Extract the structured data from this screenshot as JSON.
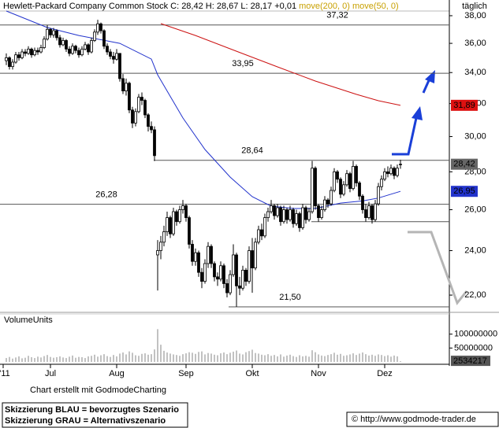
{
  "chart_data": {
    "type": "candlestick",
    "title": "Hewlett-Packard Company Common Stock C: 28,42 H: 28,67 L: 28,17 +0,01",
    "period": "täglich",
    "legend_color": "#c8a000",
    "log_scale": true,
    "xlim": [
      -2,
      140.5
    ],
    "xticks": [
      {
        "value": -1,
        "label": "'11"
      },
      {
        "value": 14,
        "label": "Jul"
      },
      {
        "value": 35,
        "label": "Aug"
      },
      {
        "value": 57,
        "label": "Sep"
      },
      {
        "value": 78,
        "label": "Okt"
      },
      {
        "value": 99,
        "label": "Nov"
      },
      {
        "value": 120,
        "label": "Dez"
      }
    ],
    "ylim": [
      21.27,
      38.35
    ],
    "yticks": [
      {
        "value": 38,
        "label": "38,00"
      },
      {
        "value": 36,
        "label": "36,00"
      },
      {
        "value": 34,
        "label": "34,00"
      },
      {
        "value": 32,
        "label": "32,00"
      },
      {
        "value": 30,
        "label": "30,00"
      },
      {
        "value": 28,
        "label": "28,00"
      },
      {
        "value": 26,
        "label": "26,00"
      },
      {
        "value": 24,
        "label": "24,00"
      },
      {
        "value": 22,
        "label": "22,00"
      }
    ],
    "candles": [
      [
        34.8,
        35.3,
        34.5,
        35.0
      ],
      [
        35.0,
        35.1,
        34.2,
        34.4
      ],
      [
        34.4,
        34.9,
        34.2,
        34.7
      ],
      [
        34.7,
        35.4,
        34.6,
        35.2
      ],
      [
        35.2,
        35.4,
        34.8,
        35.0
      ],
      [
        35.0,
        35.6,
        34.9,
        35.4
      ],
      [
        35.4,
        35.6,
        35.1,
        35.3
      ],
      [
        35.3,
        35.8,
        35.2,
        35.6
      ],
      [
        35.6,
        35.7,
        35.0,
        35.2
      ],
      [
        35.2,
        35.7,
        35.1,
        35.5
      ],
      [
        35.5,
        35.7,
        35.2,
        35.4
      ],
      [
        35.4,
        35.9,
        35.3,
        35.7
      ],
      [
        35.7,
        36.5,
        35.6,
        36.3
      ],
      [
        36.3,
        37.3,
        36.2,
        37.0
      ],
      [
        37.0,
        37.1,
        36.4,
        36.6
      ],
      [
        36.6,
        37.1,
        36.4,
        36.9
      ],
      [
        36.9,
        37.0,
        36.2,
        36.4
      ],
      [
        36.4,
        36.6,
        35.7,
        35.9
      ],
      [
        35.9,
        36.4,
        35.8,
        36.2
      ],
      [
        36.2,
        36.3,
        35.4,
        35.6
      ],
      [
        35.6,
        35.8,
        35.1,
        35.3
      ],
      [
        35.3,
        36.0,
        35.2,
        35.8
      ],
      [
        35.8,
        35.9,
        35.3,
        35.5
      ],
      [
        35.5,
        35.7,
        35.0,
        35.2
      ],
      [
        35.2,
        35.8,
        35.1,
        35.6
      ],
      [
        35.6,
        36.1,
        35.5,
        35.9
      ],
      [
        35.9,
        36.0,
        35.2,
        35.4
      ],
      [
        35.4,
        36.4,
        35.3,
        36.2
      ],
      [
        36.2,
        37.0,
        36.1,
        36.8
      ],
      [
        36.8,
        37.7,
        36.6,
        37.4
      ],
      [
        37.4,
        37.5,
        36.7,
        36.9
      ],
      [
        36.9,
        37.0,
        35.6,
        35.8
      ],
      [
        35.8,
        36.0,
        35.2,
        35.4
      ],
      [
        35.4,
        35.6,
        34.9,
        35.1
      ],
      [
        35.1,
        35.4,
        34.6,
        34.9
      ],
      [
        34.9,
        35.6,
        34.8,
        35.3
      ],
      [
        35.3,
        35.3,
        33.4,
        33.6
      ],
      [
        33.6,
        33.9,
        32.6,
        32.8
      ],
      [
        32.8,
        33.6,
        32.5,
        33.3
      ],
      [
        33.3,
        33.4,
        31.4,
        31.6
      ],
      [
        31.6,
        31.8,
        30.5,
        30.8
      ],
      [
        30.8,
        31.7,
        30.6,
        31.5
      ],
      [
        31.5,
        32.6,
        31.4,
        32.4
      ],
      [
        32.4,
        32.7,
        31.9,
        32.2
      ],
      [
        32.2,
        32.3,
        31.1,
        31.3
      ],
      [
        31.3,
        31.4,
        30.3,
        30.6
      ],
      [
        30.6,
        30.9,
        30.2,
        30.4
      ],
      [
        30.4,
        30.6,
        28.6,
        28.9
      ],
      [
        23.8,
        24.5,
        22.2,
        24.0
      ],
      [
        24.0,
        24.7,
        23.6,
        24.4
      ],
      [
        24.4,
        25.2,
        24.2,
        24.9
      ],
      [
        24.9,
        25.9,
        24.7,
        25.6
      ],
      [
        25.6,
        25.7,
        24.6,
        24.8
      ],
      [
        24.8,
        26.1,
        24.7,
        25.9
      ],
      [
        25.9,
        26.0,
        25.2,
        25.4
      ],
      [
        25.4,
        26.2,
        25.3,
        26.0
      ],
      [
        26.0,
        26.5,
        25.8,
        26.2
      ],
      [
        26.2,
        26.3,
        25.4,
        25.6
      ],
      [
        25.6,
        25.7,
        24.1,
        24.3
      ],
      [
        24.3,
        24.5,
        23.3,
        23.5
      ],
      [
        23.5,
        24.1,
        23.3,
        23.9
      ],
      [
        23.9,
        24.0,
        22.8,
        23.0
      ],
      [
        23.0,
        23.2,
        22.3,
        22.6
      ],
      [
        22.6,
        23.6,
        22.5,
        23.4
      ],
      [
        23.4,
        24.4,
        23.2,
        24.2
      ],
      [
        24.2,
        24.3,
        23.2,
        23.4
      ],
      [
        23.4,
        23.5,
        22.6,
        22.8
      ],
      [
        22.8,
        23.0,
        22.4,
        22.7
      ],
      [
        22.7,
        23.5,
        22.6,
        23.3
      ],
      [
        23.3,
        23.4,
        22.3,
        22.5
      ],
      [
        22.5,
        22.7,
        21.9,
        22.1
      ],
      [
        22.1,
        23.1,
        22.0,
        22.9
      ],
      [
        22.9,
        24.3,
        22.8,
        23.8
      ],
      [
        23.8,
        23.9,
        21.5,
        22.4
      ],
      [
        22.4,
        22.8,
        22.0,
        22.3
      ],
      [
        22.3,
        23.3,
        22.2,
        23.1
      ],
      [
        23.1,
        23.2,
        22.4,
        22.6
      ],
      [
        22.6,
        24.2,
        22.5,
        24.0
      ],
      [
        24.0,
        24.6,
        22.1,
        23.2
      ],
      [
        23.2,
        24.6,
        23.1,
        24.4
      ],
      [
        24.4,
        25.2,
        24.3,
        25.0
      ],
      [
        25.0,
        25.3,
        24.5,
        24.7
      ],
      [
        24.7,
        25.8,
        24.6,
        25.6
      ],
      [
        25.6,
        26.1,
        25.4,
        25.9
      ],
      [
        25.9,
        26.5,
        25.8,
        26.2
      ],
      [
        26.2,
        26.3,
        25.5,
        25.7
      ],
      [
        25.7,
        26.3,
        25.6,
        26.1
      ],
      [
        26.1,
        26.2,
        25.2,
        25.4
      ],
      [
        25.4,
        26.2,
        25.3,
        26.0
      ],
      [
        26.0,
        26.1,
        25.3,
        25.5
      ],
      [
        25.5,
        26.2,
        25.4,
        26.0
      ],
      [
        26.0,
        26.1,
        25.1,
        25.3
      ],
      [
        25.3,
        26.0,
        25.2,
        25.8
      ],
      [
        25.8,
        25.9,
        24.9,
        25.1
      ],
      [
        25.1,
        26.3,
        25.0,
        26.1
      ],
      [
        26.1,
        26.2,
        25.3,
        25.5
      ],
      [
        25.5,
        26.1,
        25.4,
        25.9
      ],
      [
        25.9,
        28.6,
        25.8,
        28.2
      ],
      [
        28.2,
        28.3,
        26.0,
        26.2
      ],
      [
        26.2,
        26.3,
        25.4,
        25.6
      ],
      [
        25.6,
        26.2,
        25.5,
        26.0
      ],
      [
        26.0,
        26.7,
        25.9,
        26.5
      ],
      [
        26.5,
        26.6,
        26.1,
        26.3
      ],
      [
        26.3,
        27.2,
        26.2,
        27.0
      ],
      [
        27.0,
        28.2,
        26.9,
        28.0
      ],
      [
        28.0,
        28.1,
        27.4,
        27.6
      ],
      [
        27.6,
        27.7,
        26.6,
        26.8
      ],
      [
        26.8,
        27.5,
        26.7,
        27.3
      ],
      [
        27.3,
        28.1,
        27.2,
        27.9
      ],
      [
        27.9,
        28.0,
        26.9,
        27.1
      ],
      [
        27.1,
        28.6,
        27.0,
        28.3
      ],
      [
        28.3,
        28.4,
        27.2,
        27.4
      ],
      [
        27.4,
        27.5,
        26.5,
        26.7
      ],
      [
        26.7,
        26.8,
        25.8,
        26.0
      ],
      [
        26.0,
        26.3,
        25.4,
        25.6
      ],
      [
        25.6,
        26.4,
        25.5,
        26.2
      ],
      [
        26.2,
        26.3,
        25.3,
        25.5
      ],
      [
        25.5,
        26.5,
        25.4,
        26.3
      ],
      [
        26.3,
        27.4,
        26.2,
        27.2
      ],
      [
        27.2,
        27.8,
        27.0,
        27.6
      ],
      [
        27.6,
        28.2,
        27.5,
        28.0
      ],
      [
        28.0,
        28.3,
        27.7,
        27.9
      ],
      [
        27.9,
        28.4,
        27.8,
        28.2
      ],
      [
        28.2,
        28.3,
        27.6,
        27.8
      ],
      [
        27.8,
        28.4,
        27.7,
        28.2
      ],
      [
        28.41,
        28.67,
        28.17,
        28.42
      ]
    ],
    "series": [
      {
        "name": "move(200, 0)",
        "color": "#cc1111",
        "x": [
          49,
          60,
          73,
          86,
          98,
          111,
          118,
          125
        ],
        "values": [
          37.42,
          36.56,
          35.45,
          34.38,
          33.44,
          32.58,
          32.18,
          31.89
        ]
      },
      {
        "name": "move(50, 0)",
        "color": "#2233cc",
        "x": [
          0,
          13,
          23,
          36,
          46,
          48,
          56,
          63,
          71,
          78,
          84,
          91,
          98,
          106,
          113,
          118,
          125
        ],
        "values": [
          38.35,
          37.13,
          36.56,
          36.0,
          34.91,
          33.85,
          31.11,
          29.25,
          27.71,
          26.67,
          26.18,
          26.06,
          26.06,
          26.34,
          26.45,
          26.6,
          26.95
        ]
      }
    ],
    "levels": [
      {
        "value": 37.32,
        "label": "37,32"
      },
      {
        "value": 33.95,
        "label": "33,95"
      },
      {
        "value": 28.64,
        "label": "28,64"
      },
      {
        "value": 26.28,
        "label": "26,28"
      },
      {
        "value": 25.4
      },
      {
        "value": 21.5,
        "label": "21,50"
      }
    ],
    "price_labels": [
      {
        "value": 31.89,
        "label": "31,89",
        "color": "#dd1111"
      },
      {
        "value": 28.42,
        "label": "28,42",
        "color": "#666666"
      },
      {
        "value": 26.95,
        "label": "26,95",
        "color": "#2233cc"
      }
    ],
    "volume": {
      "label": "VolumeUnits",
      "color": "#9a9a9a",
      "ylim": [
        0,
        170000000
      ],
      "yticks": [
        100000000,
        50000000
      ],
      "values": [
        14000000,
        18000000,
        12000000,
        16000000,
        20000000,
        13000000,
        15000000,
        22000000,
        17000000,
        14000000,
        19000000,
        16000000,
        21000000,
        25000000,
        18000000,
        15000000,
        17000000,
        20000000,
        16000000,
        14000000,
        19000000,
        23000000,
        15000000,
        18000000,
        17000000,
        14000000,
        20000000,
        22000000,
        26000000,
        19000000,
        24000000,
        28000000,
        21000000,
        18000000,
        25000000,
        20000000,
        30000000,
        34000000,
        27000000,
        38000000,
        33000000,
        24000000,
        22000000,
        29000000,
        31000000,
        26000000,
        28000000,
        45000000,
        118000000,
        62000000,
        40000000,
        34000000,
        30000000,
        27000000,
        25000000,
        22000000,
        28000000,
        31000000,
        35000000,
        33000000,
        29000000,
        36000000,
        38000000,
        27000000,
        32000000,
        30000000,
        26000000,
        24000000,
        31000000,
        34000000,
        28000000,
        33000000,
        37000000,
        41000000,
        30000000,
        27000000,
        35000000,
        39000000,
        44000000,
        32000000,
        30000000,
        26000000,
        24000000,
        28000000,
        22000000,
        25000000,
        20000000,
        27000000,
        19000000,
        23000000,
        26000000,
        21000000,
        18000000,
        24000000,
        20000000,
        22000000,
        19000000,
        42000000,
        35000000,
        27000000,
        23000000,
        21000000,
        25000000,
        28000000,
        33000000,
        26000000,
        29000000,
        22000000,
        24000000,
        27000000,
        31000000,
        25000000,
        30000000,
        34000000,
        28000000,
        23000000,
        26000000,
        22000000,
        27000000,
        25000000,
        21000000,
        24000000,
        19000000,
        23000000,
        20000000,
        2534217
      ]
    },
    "credit": "Chart erstellt mit GodmodeCharting",
    "notes": [
      "Skizzierung BLAU = bevorzugtes Szenario",
      "Skizzierung GRAU = Alternativszenario"
    ],
    "source": "© http://www.godmode-trader.de"
  }
}
